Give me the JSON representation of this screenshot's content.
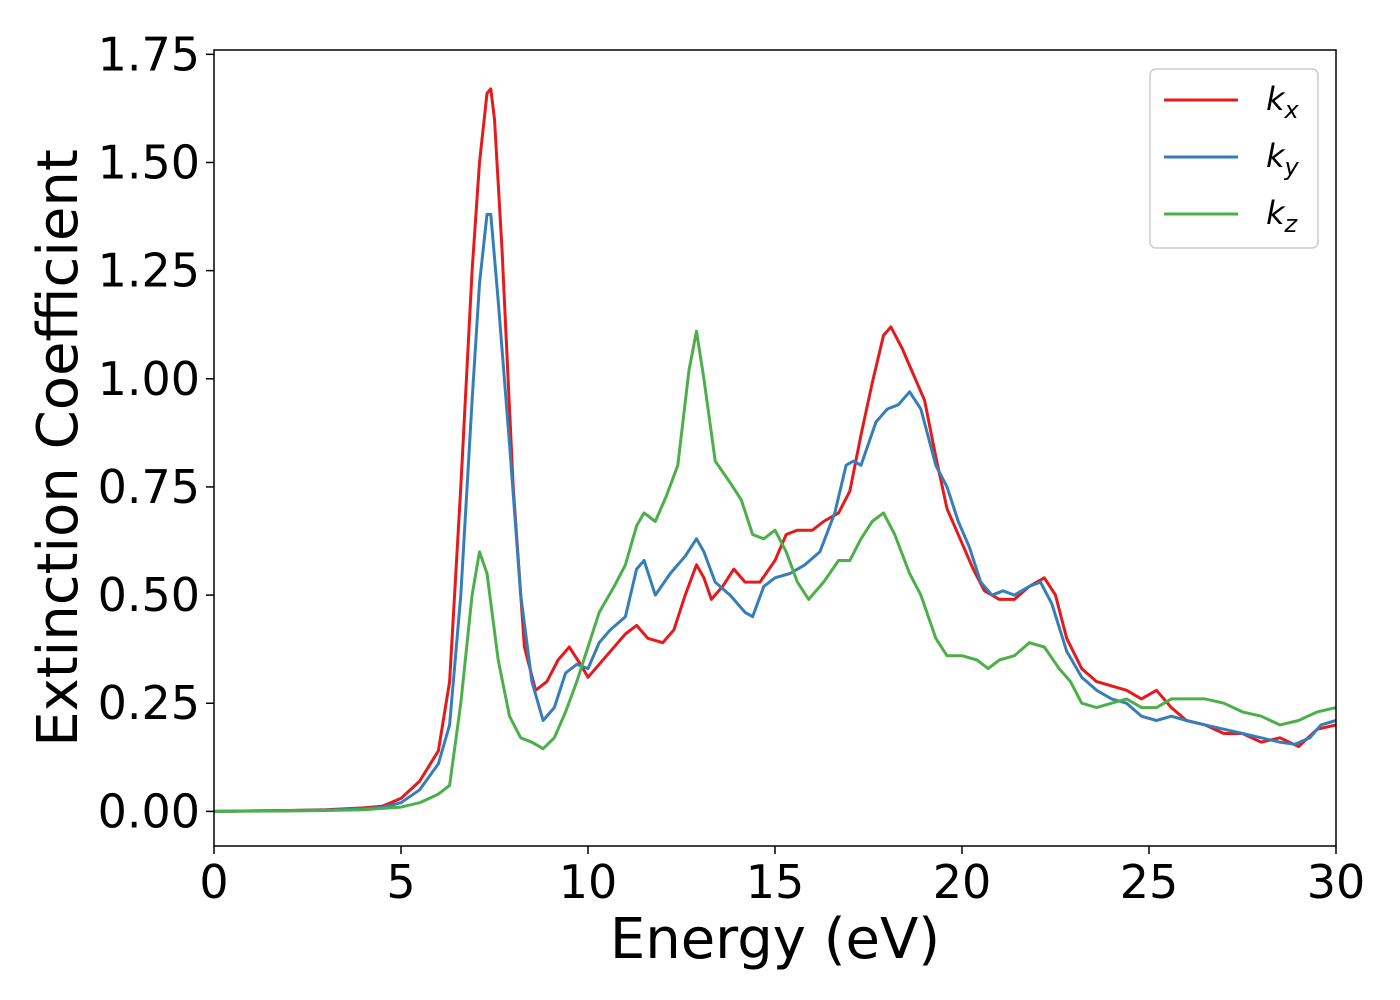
{
  "chart_data": {
    "type": "line",
    "title": "",
    "xlabel": "Energy (eV)",
    "ylabel": "Extinction Coefficient",
    "xlim": [
      0,
      30
    ],
    "ylim": [
      -0.08,
      1.76
    ],
    "xticks": [
      0,
      5,
      10,
      15,
      20,
      25,
      30
    ],
    "xtick_labels": [
      "0",
      "5",
      "10",
      "15",
      "20",
      "25",
      "30"
    ],
    "yticks": [
      0,
      0.25,
      0.5,
      0.75,
      1.0,
      1.25,
      1.5,
      1.75
    ],
    "ytick_labels": [
      "0.00",
      "0.25",
      "0.50",
      "0.75",
      "1.00",
      "1.25",
      "1.50",
      "1.75"
    ],
    "grid": false,
    "legend_position": "top-right",
    "series": [
      {
        "name": "k",
        "subscript": "x",
        "color": "#e41a1c",
        "points": [
          [
            0,
            0
          ],
          [
            2,
            0.002
          ],
          [
            3,
            0.004
          ],
          [
            4,
            0.008
          ],
          [
            4.5,
            0.012
          ],
          [
            5,
            0.03
          ],
          [
            5.5,
            0.07
          ],
          [
            6,
            0.14
          ],
          [
            6.3,
            0.3
          ],
          [
            6.6,
            0.75
          ],
          [
            6.9,
            1.25
          ],
          [
            7.1,
            1.5
          ],
          [
            7.3,
            1.66
          ],
          [
            7.4,
            1.67
          ],
          [
            7.5,
            1.6
          ],
          [
            7.7,
            1.3
          ],
          [
            8,
            0.75
          ],
          [
            8.3,
            0.38
          ],
          [
            8.6,
            0.28
          ],
          [
            8.9,
            0.3
          ],
          [
            9.2,
            0.35
          ],
          [
            9.5,
            0.38
          ],
          [
            9.8,
            0.34
          ],
          [
            10,
            0.31
          ],
          [
            10.3,
            0.34
          ],
          [
            10.6,
            0.37
          ],
          [
            11,
            0.41
          ],
          [
            11.3,
            0.43
          ],
          [
            11.6,
            0.4
          ],
          [
            12,
            0.39
          ],
          [
            12.3,
            0.42
          ],
          [
            12.6,
            0.5
          ],
          [
            12.9,
            0.57
          ],
          [
            13.1,
            0.54
          ],
          [
            13.3,
            0.49
          ],
          [
            13.6,
            0.52
          ],
          [
            13.9,
            0.56
          ],
          [
            14.2,
            0.53
          ],
          [
            14.6,
            0.53
          ],
          [
            15,
            0.58
          ],
          [
            15.3,
            0.64
          ],
          [
            15.6,
            0.65
          ],
          [
            16,
            0.65
          ],
          [
            16.3,
            0.67
          ],
          [
            16.7,
            0.69
          ],
          [
            17,
            0.74
          ],
          [
            17.3,
            0.87
          ],
          [
            17.6,
            0.99
          ],
          [
            17.9,
            1.1
          ],
          [
            18.1,
            1.12
          ],
          [
            18.4,
            1.07
          ],
          [
            18.7,
            1.01
          ],
          [
            19,
            0.95
          ],
          [
            19.3,
            0.82
          ],
          [
            19.6,
            0.7
          ],
          [
            20,
            0.62
          ],
          [
            20.3,
            0.56
          ],
          [
            20.6,
            0.51
          ],
          [
            21,
            0.49
          ],
          [
            21.4,
            0.49
          ],
          [
            21.8,
            0.52
          ],
          [
            22.2,
            0.54
          ],
          [
            22.5,
            0.5
          ],
          [
            22.8,
            0.4
          ],
          [
            23.2,
            0.33
          ],
          [
            23.6,
            0.3
          ],
          [
            24,
            0.29
          ],
          [
            24.4,
            0.28
          ],
          [
            24.8,
            0.26
          ],
          [
            25.2,
            0.28
          ],
          [
            25.6,
            0.24
          ],
          [
            26,
            0.21
          ],
          [
            26.5,
            0.2
          ],
          [
            27,
            0.18
          ],
          [
            27.5,
            0.18
          ],
          [
            28,
            0.16
          ],
          [
            28.5,
            0.17
          ],
          [
            29,
            0.15
          ],
          [
            29.5,
            0.19
          ],
          [
            30,
            0.2
          ]
        ]
      },
      {
        "name": "k",
        "subscript": "y",
        "color": "#377eb8",
        "points": [
          [
            0,
            0
          ],
          [
            2,
            0.002
          ],
          [
            3,
            0.003
          ],
          [
            4,
            0.006
          ],
          [
            4.5,
            0.009
          ],
          [
            5,
            0.02
          ],
          [
            5.5,
            0.05
          ],
          [
            6,
            0.11
          ],
          [
            6.3,
            0.2
          ],
          [
            6.6,
            0.5
          ],
          [
            6.9,
            0.95
          ],
          [
            7.1,
            1.22
          ],
          [
            7.3,
            1.38
          ],
          [
            7.4,
            1.38
          ],
          [
            7.6,
            1.18
          ],
          [
            7.9,
            0.85
          ],
          [
            8.2,
            0.5
          ],
          [
            8.5,
            0.3
          ],
          [
            8.8,
            0.21
          ],
          [
            9.1,
            0.24
          ],
          [
            9.4,
            0.32
          ],
          [
            9.7,
            0.34
          ],
          [
            10,
            0.33
          ],
          [
            10.3,
            0.39
          ],
          [
            10.6,
            0.42
          ],
          [
            11,
            0.45
          ],
          [
            11.3,
            0.56
          ],
          [
            11.5,
            0.58
          ],
          [
            11.8,
            0.5
          ],
          [
            12.2,
            0.55
          ],
          [
            12.6,
            0.59
          ],
          [
            12.9,
            0.63
          ],
          [
            13.1,
            0.6
          ],
          [
            13.4,
            0.53
          ],
          [
            13.8,
            0.5
          ],
          [
            14.2,
            0.46
          ],
          [
            14.4,
            0.45
          ],
          [
            14.7,
            0.52
          ],
          [
            15,
            0.54
          ],
          [
            15.4,
            0.55
          ],
          [
            15.8,
            0.57
          ],
          [
            16.2,
            0.6
          ],
          [
            16.6,
            0.69
          ],
          [
            16.9,
            0.8
          ],
          [
            17.1,
            0.81
          ],
          [
            17.3,
            0.8
          ],
          [
            17.7,
            0.9
          ],
          [
            18,
            0.93
          ],
          [
            18.3,
            0.94
          ],
          [
            18.6,
            0.97
          ],
          [
            18.9,
            0.93
          ],
          [
            19.3,
            0.8
          ],
          [
            19.6,
            0.75
          ],
          [
            19.9,
            0.67
          ],
          [
            20.2,
            0.61
          ],
          [
            20.5,
            0.53
          ],
          [
            20.8,
            0.5
          ],
          [
            21.1,
            0.51
          ],
          [
            21.4,
            0.5
          ],
          [
            21.8,
            0.52
          ],
          [
            22.1,
            0.53
          ],
          [
            22.4,
            0.48
          ],
          [
            22.8,
            0.37
          ],
          [
            23.2,
            0.31
          ],
          [
            23.6,
            0.28
          ],
          [
            24,
            0.26
          ],
          [
            24.4,
            0.25
          ],
          [
            24.8,
            0.22
          ],
          [
            25.2,
            0.21
          ],
          [
            25.6,
            0.22
          ],
          [
            26,
            0.21
          ],
          [
            26.5,
            0.2
          ],
          [
            27,
            0.19
          ],
          [
            27.5,
            0.18
          ],
          [
            28,
            0.17
          ],
          [
            28.5,
            0.16
          ],
          [
            28.9,
            0.155
          ],
          [
            29.3,
            0.17
          ],
          [
            29.6,
            0.2
          ],
          [
            30,
            0.21
          ]
        ]
      },
      {
        "name": "k",
        "subscript": "z",
        "color": "#4daf4a",
        "points": [
          [
            0,
            0
          ],
          [
            2,
            0.001
          ],
          [
            3,
            0.002
          ],
          [
            4,
            0.004
          ],
          [
            5,
            0.01
          ],
          [
            5.5,
            0.02
          ],
          [
            6,
            0.04
          ],
          [
            6.3,
            0.06
          ],
          [
            6.6,
            0.25
          ],
          [
            6.9,
            0.5
          ],
          [
            7.1,
            0.6
          ],
          [
            7.3,
            0.55
          ],
          [
            7.6,
            0.35
          ],
          [
            7.9,
            0.22
          ],
          [
            8.2,
            0.17
          ],
          [
            8.5,
            0.16
          ],
          [
            8.8,
            0.145
          ],
          [
            9.1,
            0.17
          ],
          [
            9.4,
            0.23
          ],
          [
            9.7,
            0.3
          ],
          [
            10,
            0.38
          ],
          [
            10.3,
            0.46
          ],
          [
            10.7,
            0.52
          ],
          [
            11,
            0.57
          ],
          [
            11.3,
            0.66
          ],
          [
            11.5,
            0.69
          ],
          [
            11.8,
            0.67
          ],
          [
            12.1,
            0.73
          ],
          [
            12.4,
            0.8
          ],
          [
            12.7,
            1.02
          ],
          [
            12.9,
            1.11
          ],
          [
            13.1,
            1.0
          ],
          [
            13.4,
            0.81
          ],
          [
            13.8,
            0.76
          ],
          [
            14.1,
            0.72
          ],
          [
            14.4,
            0.64
          ],
          [
            14.7,
            0.63
          ],
          [
            15,
            0.65
          ],
          [
            15.3,
            0.6
          ],
          [
            15.6,
            0.53
          ],
          [
            15.9,
            0.49
          ],
          [
            16.3,
            0.53
          ],
          [
            16.7,
            0.58
          ],
          [
            17,
            0.58
          ],
          [
            17.3,
            0.63
          ],
          [
            17.6,
            0.67
          ],
          [
            17.9,
            0.69
          ],
          [
            18.2,
            0.64
          ],
          [
            18.6,
            0.55
          ],
          [
            18.9,
            0.5
          ],
          [
            19.3,
            0.4
          ],
          [
            19.6,
            0.36
          ],
          [
            20,
            0.36
          ],
          [
            20.4,
            0.35
          ],
          [
            20.7,
            0.33
          ],
          [
            21,
            0.35
          ],
          [
            21.4,
            0.36
          ],
          [
            21.8,
            0.39
          ],
          [
            22.2,
            0.38
          ],
          [
            22.6,
            0.33
          ],
          [
            22.9,
            0.3
          ],
          [
            23.2,
            0.25
          ],
          [
            23.6,
            0.24
          ],
          [
            24,
            0.25
          ],
          [
            24.4,
            0.26
          ],
          [
            24.8,
            0.24
          ],
          [
            25.2,
            0.24
          ],
          [
            25.6,
            0.26
          ],
          [
            26,
            0.26
          ],
          [
            26.5,
            0.26
          ],
          [
            27,
            0.25
          ],
          [
            27.5,
            0.23
          ],
          [
            28,
            0.22
          ],
          [
            28.5,
            0.2
          ],
          [
            29,
            0.21
          ],
          [
            29.5,
            0.23
          ],
          [
            30,
            0.24
          ]
        ]
      }
    ]
  }
}
